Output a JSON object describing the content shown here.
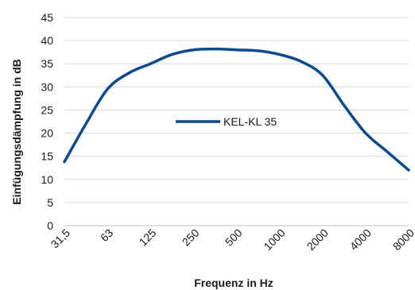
{
  "chart_data": {
    "type": "line",
    "title": "",
    "xlabel": "Frequenz in Hz",
    "ylabel": "Einfügungsdämpfung in dB",
    "categories": [
      "31,5",
      "63",
      "125",
      "250",
      "500",
      "1000",
      "2000",
      "4000",
      "8000"
    ],
    "ylim": [
      0,
      45
    ],
    "yticks": [
      0,
      5,
      10,
      15,
      20,
      25,
      30,
      35,
      40,
      45
    ],
    "grid": "horizontal",
    "legend_position": "center",
    "series": [
      {
        "name": "KEL-KL 35",
        "color": "#0b4a8f",
        "x": [
          0,
          0.5,
          1,
          1.5,
          2,
          2.5,
          3,
          3.5,
          4,
          4.5,
          5,
          5.5,
          6,
          6.5,
          7,
          7.5,
          8
        ],
        "values": [
          13.8,
          22,
          29.5,
          33,
          35,
          37,
          38,
          38.2,
          38,
          37.8,
          37,
          35.5,
          32.5,
          26,
          20,
          16,
          12
        ]
      }
    ]
  }
}
